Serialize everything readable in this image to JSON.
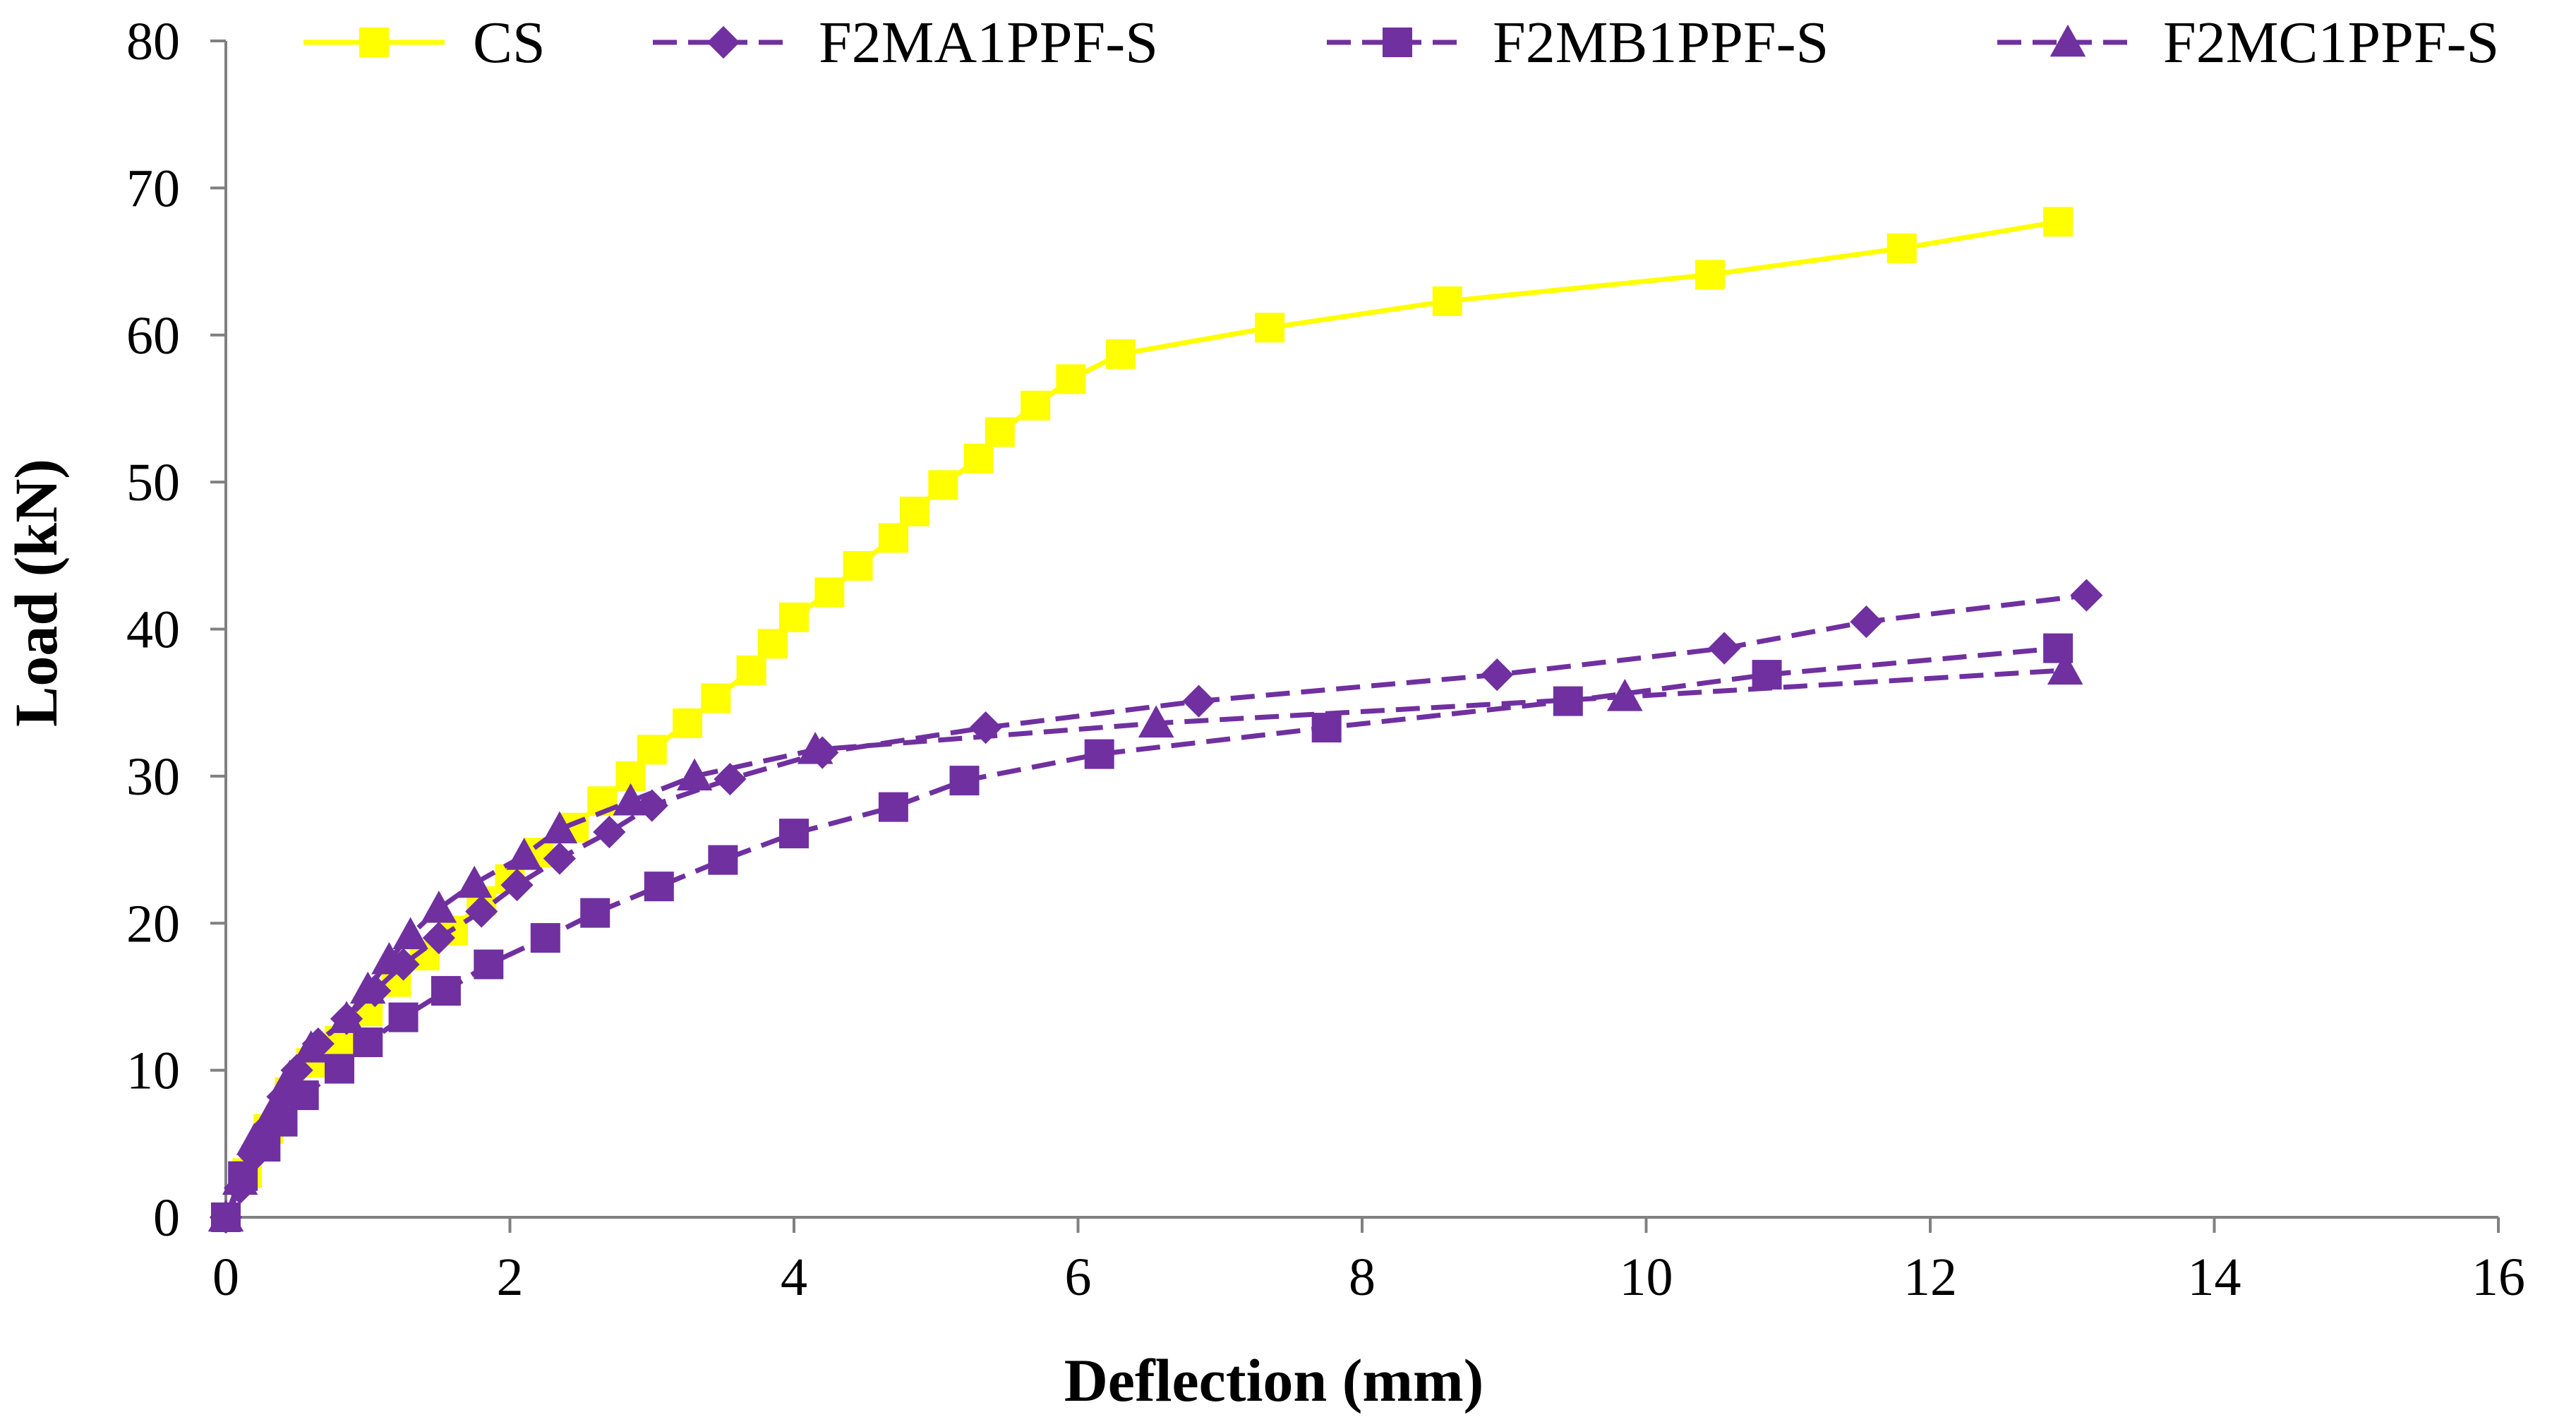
{
  "chart_data": {
    "type": "line",
    "title": "",
    "xlabel": "Deflection (mm)",
    "ylabel": "Load (kN)",
    "xlim": [
      0,
      16
    ],
    "ylim": [
      0,
      80
    ],
    "xticks": [
      0,
      2,
      4,
      6,
      8,
      10,
      12,
      14,
      16
    ],
    "yticks": [
      0,
      10,
      20,
      30,
      40,
      50,
      60,
      70,
      80
    ],
    "grid": false,
    "legend_position": "top",
    "series": [
      {
        "name": "CS",
        "color": "#FFFF00",
        "line": "solid",
        "marker": "square",
        "points": [
          [
            0,
            0
          ],
          [
            0.15,
            3
          ],
          [
            0.3,
            6
          ],
          [
            0.45,
            8.5
          ],
          [
            0.6,
            10.5
          ],
          [
            0.8,
            12
          ],
          [
            1.0,
            14
          ],
          [
            1.2,
            16
          ],
          [
            1.4,
            17.8
          ],
          [
            1.6,
            19.5
          ],
          [
            1.8,
            21.5
          ],
          [
            2.0,
            23
          ],
          [
            2.2,
            24.8
          ],
          [
            2.45,
            26.5
          ],
          [
            2.65,
            28.3
          ],
          [
            2.85,
            30
          ],
          [
            3.0,
            31.8
          ],
          [
            3.25,
            33.6
          ],
          [
            3.45,
            35.3
          ],
          [
            3.7,
            37.2
          ],
          [
            3.85,
            39
          ],
          [
            4.0,
            40.8
          ],
          [
            4.25,
            42.5
          ],
          [
            4.45,
            44.3
          ],
          [
            4.7,
            46.2
          ],
          [
            4.85,
            48
          ],
          [
            5.05,
            49.8
          ],
          [
            5.3,
            51.6
          ],
          [
            5.45,
            53.4
          ],
          [
            5.7,
            55.2
          ],
          [
            5.95,
            57
          ],
          [
            6.3,
            58.7
          ],
          [
            7.35,
            60.5
          ],
          [
            8.6,
            62.3
          ],
          [
            10.45,
            64.1
          ],
          [
            11.8,
            65.9
          ],
          [
            12.9,
            67.7
          ]
        ]
      },
      {
        "name": "F2MA1PPF-S",
        "color": "#7030A0",
        "line": "dashed",
        "marker": "diamond",
        "points": [
          [
            0,
            0
          ],
          [
            0.1,
            2
          ],
          [
            0.2,
            4.2
          ],
          [
            0.3,
            6.2
          ],
          [
            0.4,
            8.2
          ],
          [
            0.5,
            10
          ],
          [
            0.65,
            11.8
          ],
          [
            0.85,
            13.5
          ],
          [
            1.05,
            15.4
          ],
          [
            1.25,
            17.2
          ],
          [
            1.5,
            19
          ],
          [
            1.8,
            20.8
          ],
          [
            2.05,
            22.6
          ],
          [
            2.35,
            24.4
          ],
          [
            2.7,
            26.2
          ],
          [
            3.0,
            28
          ],
          [
            3.55,
            29.8
          ],
          [
            4.2,
            31.6
          ],
          [
            5.35,
            33.3
          ],
          [
            6.85,
            35.1
          ],
          [
            8.95,
            36.9
          ],
          [
            10.55,
            38.7
          ],
          [
            11.55,
            40.5
          ],
          [
            13.1,
            42.3
          ]
        ]
      },
      {
        "name": "F2MB1PPF-S",
        "color": "#7030A0",
        "line": "dashed",
        "marker": "square",
        "points": [
          [
            0,
            0
          ],
          [
            0.12,
            2.8
          ],
          [
            0.28,
            4.8
          ],
          [
            0.4,
            6.5
          ],
          [
            0.55,
            8.3
          ],
          [
            0.8,
            10.1
          ],
          [
            1.0,
            11.9
          ],
          [
            1.25,
            13.6
          ],
          [
            1.55,
            15.4
          ],
          [
            1.85,
            17.2
          ],
          [
            2.25,
            19
          ],
          [
            2.6,
            20.7
          ],
          [
            3.05,
            22.5
          ],
          [
            3.5,
            24.3
          ],
          [
            4.0,
            26.1
          ],
          [
            4.7,
            27.9
          ],
          [
            5.2,
            29.7
          ],
          [
            6.15,
            31.5
          ],
          [
            7.75,
            33.3
          ],
          [
            9.45,
            35.1
          ],
          [
            10.85,
            36.9
          ],
          [
            12.9,
            38.7
          ]
        ]
      },
      {
        "name": "F2MC1PPF-S",
        "color": "#7030A0",
        "line": "dashed",
        "marker": "triangle",
        "points": [
          [
            0,
            0
          ],
          [
            0.1,
            2.5
          ],
          [
            0.2,
            5.2
          ],
          [
            0.35,
            7.5
          ],
          [
            0.45,
            9.5
          ],
          [
            0.6,
            11.5
          ],
          [
            0.85,
            13.5
          ],
          [
            1.0,
            15.5
          ],
          [
            1.15,
            17.5
          ],
          [
            1.3,
            19.2
          ],
          [
            1.5,
            21
          ],
          [
            1.75,
            22.7
          ],
          [
            2.1,
            24.6
          ],
          [
            2.35,
            26.4
          ],
          [
            2.85,
            28.3
          ],
          [
            3.3,
            30
          ],
          [
            4.15,
            31.8
          ],
          [
            6.55,
            33.6
          ],
          [
            9.85,
            35.4
          ],
          [
            12.95,
            37.2
          ]
        ]
      }
    ]
  }
}
